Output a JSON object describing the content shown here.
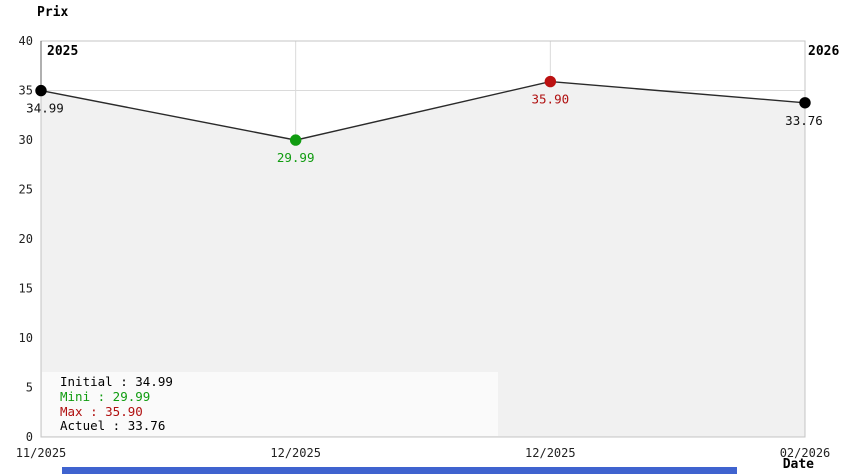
{
  "axis_titles": {
    "y": "Prix",
    "x": "Date"
  },
  "year_labels": [
    {
      "text": "2025"
    },
    {
      "text": "2026"
    }
  ],
  "chart_data": {
    "type": "line",
    "title": "",
    "xlabel": "Date",
    "ylabel": "Prix",
    "ylim": [
      0,
      40
    ],
    "y_ticks": [
      0,
      5,
      10,
      15,
      20,
      25,
      30,
      35,
      40
    ],
    "x_tick_labels": [
      "11/2025",
      "12/2025",
      "12/2025",
      "02/2026"
    ],
    "grid": true,
    "line_color": "#2a2a2a",
    "fill_color": "#f1f1f1",
    "grid_color": "#dadada",
    "border_color": "#c4c4c4",
    "points": [
      {
        "x_label": "11/2025",
        "value": 34.99,
        "label": "34.99",
        "color": "#000000",
        "label_color": "#111111",
        "role": "initial"
      },
      {
        "x_label": "12/2025",
        "value": 29.99,
        "label": "29.99",
        "color": "#109c10",
        "label_color": "#109c10",
        "role": "min"
      },
      {
        "x_label": "12/2025",
        "value": 35.9,
        "label": "35.90",
        "color": "#bb1111",
        "label_color": "#b01010",
        "role": "max"
      },
      {
        "x_label": "02/2026",
        "value": 33.76,
        "label": "33.76",
        "color": "#000000",
        "label_color": "#111111",
        "role": "current"
      }
    ]
  },
  "legend": {
    "items": [
      {
        "text": "Initial : 34.99",
        "color": "#000000"
      },
      {
        "text": "Mini : 29.99",
        "color": "#109c10"
      },
      {
        "text": "Max : 35.90",
        "color": "#b01010"
      },
      {
        "text": "Actuel : 33.76",
        "color": "#000000"
      }
    ]
  },
  "bottom_scrollbar": {
    "color": "#3f63cf"
  }
}
